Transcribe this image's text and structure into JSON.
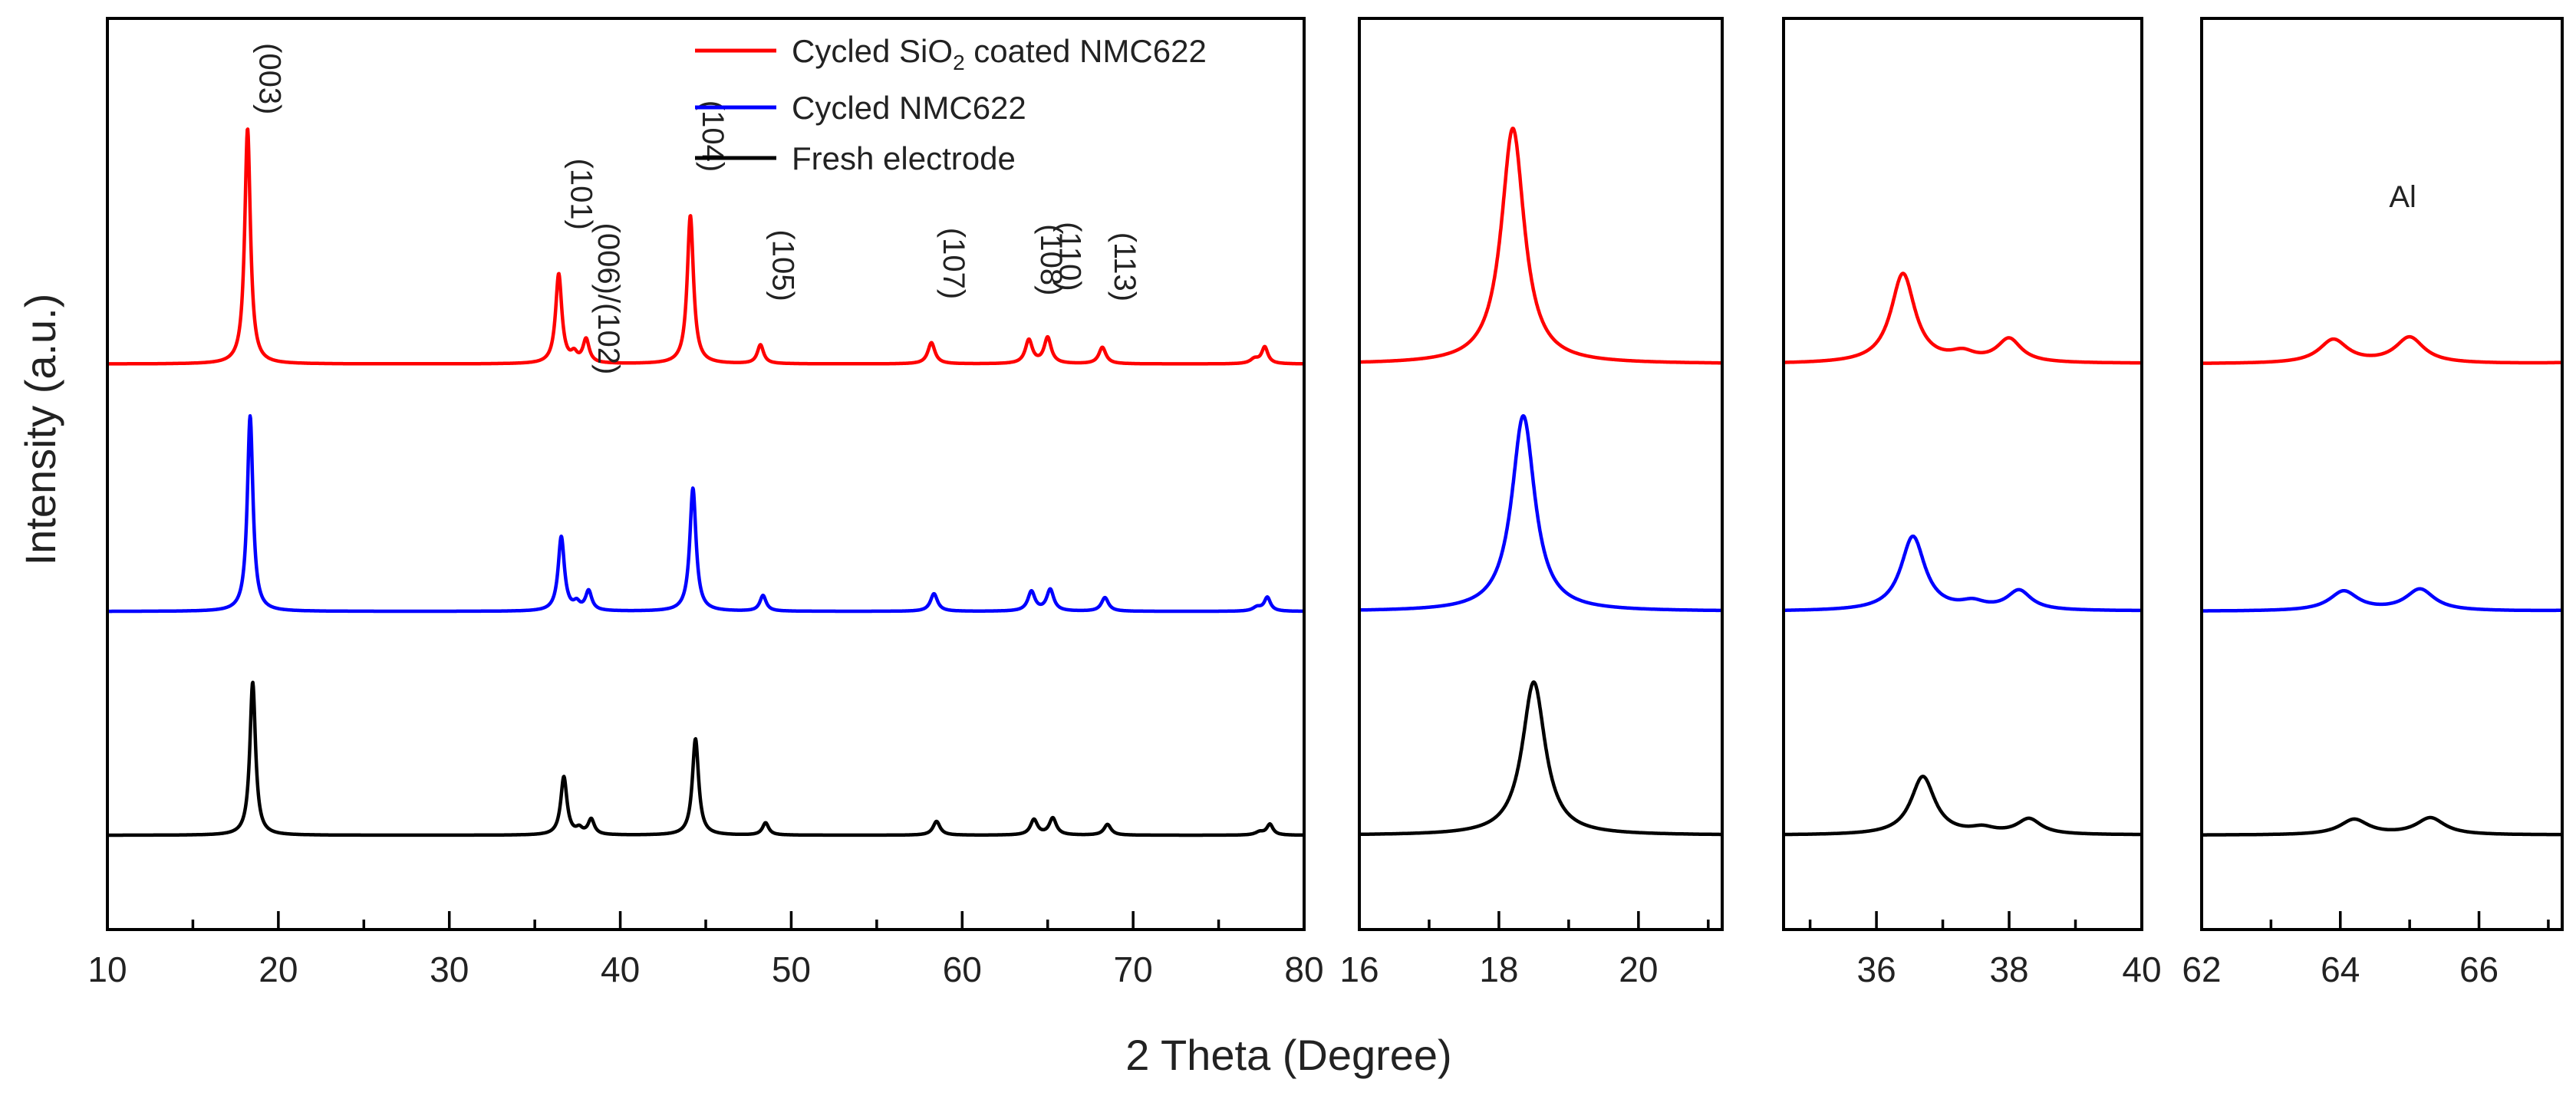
{
  "chart_data": {
    "type": "line",
    "xlabel": "2 Theta (Degree)",
    "ylabel": "Intensity (a.u.)",
    "series": [
      {
        "name": "Cycled SiO2 coated NMC622",
        "legend_main": "Cycled SiO",
        "legend_sub": "2",
        "legend_tail": " coated NMC622",
        "color": "#ff0000",
        "offset": 0.66,
        "scale": 0.3,
        "shift": -0.3,
        "height_scale": 1.0
      },
      {
        "name": "Cycled NMC622",
        "legend_main": "Cycled NMC622",
        "color": "#0000ff",
        "offset": 0.345,
        "scale": 0.3,
        "shift": -0.15,
        "height_scale": 0.83
      },
      {
        "name": "Fresh electrode",
        "legend_main": "Fresh electrode",
        "color": "#000000",
        "offset": 0.06,
        "scale": 0.3,
        "shift": 0.0,
        "height_scale": 0.65
      }
    ],
    "panels": [
      {
        "id": "full",
        "xlim": [
          10,
          80
        ],
        "ylim": [
          -0.06,
          1.1
        ],
        "major_ticks": [
          10,
          20,
          30,
          40,
          50,
          60,
          70,
          80
        ],
        "minor_ticks": [
          15,
          25,
          35,
          45,
          55,
          65,
          75
        ],
        "tick_labels": [
          "10",
          "20",
          "30",
          "40",
          "50",
          "60",
          "70",
          "80"
        ]
      },
      {
        "id": "zoom-003",
        "xlim": [
          16,
          21.2
        ],
        "ylim": [
          -0.06,
          1.1
        ],
        "major_ticks": [
          16,
          18,
          20
        ],
        "minor_ticks": [
          17,
          19,
          21
        ],
        "tick_labels": [
          "16",
          "18",
          "20"
        ]
      },
      {
        "id": "zoom-101",
        "xlim": [
          34.6,
          40
        ],
        "ylim": [
          -0.06,
          1.1
        ],
        "major_ticks": [
          36,
          38,
          40
        ],
        "minor_ticks": [
          35,
          37,
          39
        ],
        "tick_labels": [
          "36",
          "38",
          "40"
        ]
      },
      {
        "id": "zoom-108",
        "xlim": [
          62,
          67.2
        ],
        "ylim": [
          -0.06,
          1.1
        ],
        "major_ticks": [
          62,
          64,
          66
        ],
        "minor_ticks": [
          63,
          65,
          67
        ],
        "tick_labels": [
          "62",
          "64",
          "66"
        ]
      }
    ],
    "peaks": [
      {
        "label": "(003)",
        "position": 18.5,
        "height": 1.0,
        "width": 0.2
      },
      {
        "label": "(101)",
        "position": 36.7,
        "height": 0.38,
        "width": 0.22
      },
      {
        "label": "(006)/(102)",
        "position": 38.3,
        "height": 0.1,
        "width": 0.22
      },
      {
        "label": "(104)",
        "position": 44.4,
        "height": 0.63,
        "width": 0.22
      },
      {
        "label": "(105)",
        "position": 48.5,
        "height": 0.08,
        "width": 0.22
      },
      {
        "label": "(107)",
        "position": 58.5,
        "height": 0.09,
        "width": 0.25
      },
      {
        "label": "(108)",
        "position": 64.2,
        "height": 0.1,
        "width": 0.25
      },
      {
        "label": "(110)",
        "position": 65.3,
        "height": 0.11,
        "width": 0.25
      },
      {
        "label": "(113)",
        "position": 68.5,
        "height": 0.07,
        "width": 0.25
      }
    ],
    "minor_peaks": [
      {
        "position": 37.6,
        "height": 0.035,
        "width": 0.22
      },
      {
        "position": 78.0,
        "height": 0.07,
        "width": 0.22
      },
      {
        "position": 77.4,
        "height": 0.02,
        "width": 0.3
      }
    ],
    "annotations": [
      {
        "panel": "zoom-108",
        "text": "Al",
        "x": 64.9,
        "y": 0.86
      }
    ]
  }
}
